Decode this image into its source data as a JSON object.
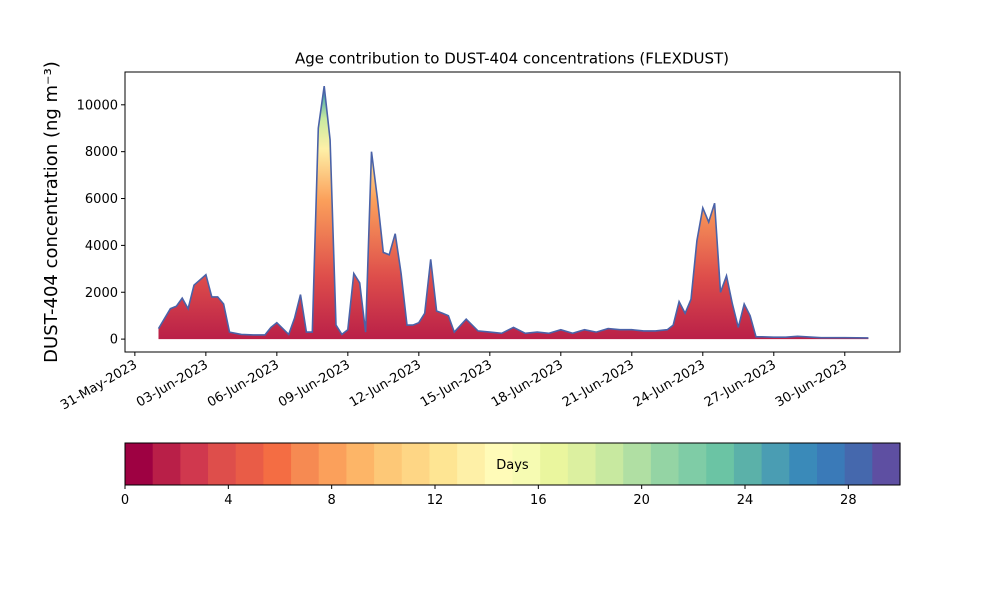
{
  "chart_data": {
    "type": "area",
    "stacked": true,
    "title": "Age contribution to DUST-404 concentrations (FLEXDUST)",
    "ylabel": "DUST-404 concentration (ng m⁻³)",
    "xlabel": "",
    "ylim": [
      -550,
      11400
    ],
    "yticks": [
      0,
      2000,
      4000,
      6000,
      8000,
      10000
    ],
    "xlim": [
      "2023-05-30T14:00",
      "2023-07-02T08:00"
    ],
    "xtick_labels": [
      "31-May-2023",
      "03-Jun-2023",
      "06-Jun-2023",
      "09-Jun-2023",
      "12-Jun-2023",
      "15-Jun-2023",
      "18-Jun-2023",
      "21-Jun-2023",
      "24-Jun-2023",
      "27-Jun-2023",
      "30-Jun-2023"
    ],
    "xtick_dates": [
      "2023-05-31",
      "2023-06-03",
      "2023-06-06",
      "2023-06-09",
      "2023-06-12",
      "2023-06-15",
      "2023-06-18",
      "2023-06-21",
      "2023-06-24",
      "2023-06-27",
      "2023-06-30"
    ],
    "grid": false,
    "total_series": {
      "name": "",
      "x": [
        "2023-06-01T00:00",
        "2023-06-01T12:00",
        "2023-06-01T18:00",
        "2023-06-02T00:00",
        "2023-06-02T06:00",
        "2023-06-02T12:00",
        "2023-06-03T00:00",
        "2023-06-03T06:00",
        "2023-06-03T12:00",
        "2023-06-03T18:00",
        "2023-06-04T00:00",
        "2023-06-04T06:00",
        "2023-06-04T12:00",
        "2023-06-05T00:00",
        "2023-06-05T12:00",
        "2023-06-05T18:00",
        "2023-06-06T00:00",
        "2023-06-06T12:00",
        "2023-06-06T18:00",
        "2023-06-07T00:00",
        "2023-06-07T06:00",
        "2023-06-07T12:00",
        "2023-06-07T18:00",
        "2023-06-08T00:00",
        "2023-06-08T06:00",
        "2023-06-08T12:00",
        "2023-06-08T18:00",
        "2023-06-09T00:00",
        "2023-06-09T06:00",
        "2023-06-09T12:00",
        "2023-06-09T18:00",
        "2023-06-10T00:00",
        "2023-06-10T06:00",
        "2023-06-10T12:00",
        "2023-06-10T18:00",
        "2023-06-11T00:00",
        "2023-06-11T06:00",
        "2023-06-11T12:00",
        "2023-06-11T18:00",
        "2023-06-12T00:00",
        "2023-06-12T06:00",
        "2023-06-12T12:00",
        "2023-06-12T18:00",
        "2023-06-13T00:00",
        "2023-06-13T06:00",
        "2023-06-13T12:00",
        "2023-06-14T00:00",
        "2023-06-14T12:00",
        "2023-06-15T00:00",
        "2023-06-15T12:00",
        "2023-06-16T00:00",
        "2023-06-16T12:00",
        "2023-06-17T00:00",
        "2023-06-17T12:00",
        "2023-06-18T00:00",
        "2023-06-18T12:00",
        "2023-06-19T00:00",
        "2023-06-19T12:00",
        "2023-06-20T00:00",
        "2023-06-20T12:00",
        "2023-06-21T00:00",
        "2023-06-21T12:00",
        "2023-06-22T00:00",
        "2023-06-22T12:00",
        "2023-06-22T18:00",
        "2023-06-23T00:00",
        "2023-06-23T06:00",
        "2023-06-23T12:00",
        "2023-06-23T18:00",
        "2023-06-24T00:00",
        "2023-06-24T06:00",
        "2023-06-24T12:00",
        "2023-06-24T18:00",
        "2023-06-25T00:00",
        "2023-06-25T06:00",
        "2023-06-25T12:00",
        "2023-06-25T18:00",
        "2023-06-26T00:00",
        "2023-06-26T06:00",
        "2023-06-26T12:00",
        "2023-06-27T00:00",
        "2023-06-27T12:00",
        "2023-06-28T00:00",
        "2023-06-29T00:00",
        "2023-06-30T00:00",
        "2023-07-01T00:00"
      ],
      "y": [
        450,
        1300,
        1400,
        1750,
        1300,
        2300,
        2750,
        1800,
        1800,
        1500,
        300,
        250,
        200,
        180,
        180,
        500,
        700,
        200,
        900,
        1900,
        300,
        300,
        9000,
        10800,
        8500,
        600,
        200,
        400,
        2800,
        2400,
        300,
        8000,
        6000,
        3700,
        3600,
        4500,
        2800,
        600,
        600,
        700,
        1100,
        3400,
        1200,
        1100,
        1000,
        300,
        850,
        350,
        300,
        250,
        500,
        250,
        300,
        250,
        400,
        250,
        400,
        300,
        450,
        400,
        400,
        350,
        350,
        400,
        600,
        1600,
        1100,
        1700,
        4200,
        5600,
        5000,
        5800,
        2000,
        2700,
        1500,
        500,
        1500,
        1000,
        100,
        100,
        80,
        80,
        120,
        60,
        60,
        50
      ]
    },
    "colorbar": {
      "label": "Days",
      "min": 0,
      "max": 30,
      "ticks": [
        0,
        4,
        8,
        12,
        16,
        20,
        24,
        28
      ],
      "colors": [
        "#9e0142",
        "#b91f48",
        "#d0384e",
        "#de4e4b",
        "#e95c47",
        "#f46d43",
        "#f68a52",
        "#fba05b",
        "#fdb567",
        "#fdc877",
        "#fed685",
        "#fee593",
        "#fef0a7",
        "#fffbb8",
        "#f6fbb2",
        "#eaf69e",
        "#dcf0a0",
        "#c8e9a0",
        "#b0dfa3",
        "#94d4a4",
        "#7fcca6",
        "#6bc4a4",
        "#5bb1a9",
        "#4a9db3",
        "#3a8ab9",
        "#3a7ab8",
        "#4568ad",
        "#5e4fa2"
      ]
    }
  }
}
